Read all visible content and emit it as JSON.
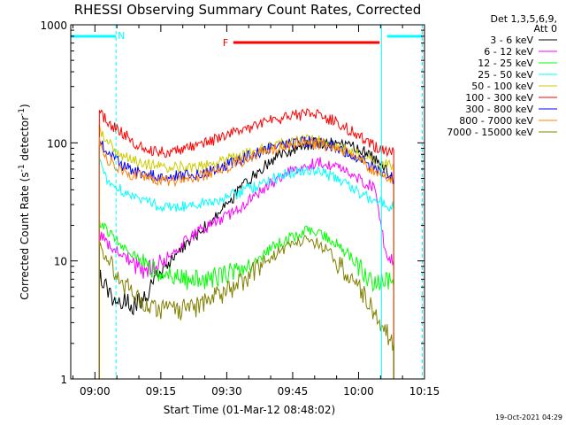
{
  "chart_data": {
    "type": "line",
    "title": "RHESSI Observing Summary Count Rates, Corrected",
    "xlabel": "Start Time (01-Mar-12 08:48:02)",
    "ylabel": "Corrected Count Rate (s-1 detector-1)",
    "ylabel_parts": {
      "a": "Corrected Count Rate (s",
      "sup1": "-1",
      "b": " detector",
      "sup2": "-1",
      "c": ")"
    },
    "xlim_minutes": [
      -5.5,
      75
    ],
    "ylim": [
      1,
      1000
    ],
    "y_scale": "log",
    "x_ticks": [
      {
        "m": 0,
        "label": "09:00"
      },
      {
        "m": 15,
        "label": "09:15"
      },
      {
        "m": 30,
        "label": "09:30"
      },
      {
        "m": 45,
        "label": "09:45"
      },
      {
        "m": 60,
        "label": "10:00"
      },
      {
        "m": 75,
        "label": "10:15"
      }
    ],
    "y_ticks": [
      {
        "v": 1,
        "label": "1"
      },
      {
        "v": 10,
        "label": "10"
      },
      {
        "v": 100,
        "label": "100"
      },
      {
        "v": 1000,
        "label": "1000"
      }
    ],
    "legend": {
      "header1": "Det 1,3,5,6,9,",
      "header2": "Att 0"
    },
    "annotations": {
      "night_label": "N",
      "flare_label": "F",
      "night_segments": [
        [
          -5.5,
          4.8
        ],
        [
          66.5,
          74.5
        ]
      ],
      "night_markers": [
        4.8,
        65.2,
        74.5
      ],
      "flare_segment": [
        31.5,
        64.8
      ]
    },
    "series": [
      {
        "name": "3 - 6 keV",
        "color": "#000000",
        "values": [
          [
            1,
            7.5
          ],
          [
            3,
            5.5
          ],
          [
            6,
            4.5
          ],
          [
            9,
            4.2
          ],
          [
            12,
            5.5
          ],
          [
            15,
            8
          ],
          [
            18,
            11
          ],
          [
            21,
            14
          ],
          [
            24,
            18
          ],
          [
            27,
            23
          ],
          [
            30,
            30
          ],
          [
            33,
            40
          ],
          [
            36,
            52
          ],
          [
            39,
            65
          ],
          [
            42,
            78
          ],
          [
            45,
            88
          ],
          [
            48,
            95
          ],
          [
            51,
            100
          ],
          [
            54,
            99
          ],
          [
            57,
            95
          ],
          [
            60,
            90
          ],
          [
            62,
            82
          ],
          [
            64,
            70
          ],
          [
            66,
            60
          ],
          [
            68,
            45
          ]
        ]
      },
      {
        "name": "6 - 12 keV",
        "color": "#ff00ff",
        "values": [
          [
            1,
            17
          ],
          [
            3,
            14
          ],
          [
            6,
            11
          ],
          [
            9,
            9
          ],
          [
            12,
            8.5
          ],
          [
            15,
            9.5
          ],
          [
            18,
            12
          ],
          [
            21,
            15
          ],
          [
            24,
            18
          ],
          [
            27,
            21
          ],
          [
            30,
            24
          ],
          [
            33,
            28
          ],
          [
            36,
            35
          ],
          [
            39,
            42
          ],
          [
            42,
            50
          ],
          [
            45,
            58
          ],
          [
            48,
            65
          ],
          [
            51,
            68
          ],
          [
            54,
            65
          ],
          [
            57,
            58
          ],
          [
            60,
            50
          ],
          [
            62,
            45
          ],
          [
            64,
            40
          ],
          [
            66,
            12
          ],
          [
            68,
            10
          ]
        ]
      },
      {
        "name": "12 - 25 keV",
        "color": "#00ff00",
        "values": [
          [
            1,
            22
          ],
          [
            3,
            18
          ],
          [
            6,
            14
          ],
          [
            9,
            11
          ],
          [
            12,
            9
          ],
          [
            15,
            8
          ],
          [
            18,
            7
          ],
          [
            21,
            6.8
          ],
          [
            24,
            6.8
          ],
          [
            27,
            7.2
          ],
          [
            30,
            7.8
          ],
          [
            33,
            8.5
          ],
          [
            36,
            10
          ],
          [
            39,
            12
          ],
          [
            42,
            14
          ],
          [
            45,
            16
          ],
          [
            48,
            18
          ],
          [
            51,
            17
          ],
          [
            54,
            15
          ],
          [
            57,
            12
          ],
          [
            60,
            9
          ],
          [
            62,
            7
          ],
          [
            64,
            6.5
          ],
          [
            66,
            6.5
          ],
          [
            68,
            6.5
          ]
        ]
      },
      {
        "name": "25 - 50 keV",
        "color": "#00ffff",
        "values": [
          [
            1,
            70
          ],
          [
            3,
            48
          ],
          [
            6,
            40
          ],
          [
            9,
            35
          ],
          [
            12,
            31
          ],
          [
            15,
            29
          ],
          [
            18,
            29
          ],
          [
            21,
            29
          ],
          [
            24,
            30
          ],
          [
            27,
            32
          ],
          [
            30,
            35
          ],
          [
            33,
            38
          ],
          [
            36,
            42
          ],
          [
            39,
            47
          ],
          [
            42,
            52
          ],
          [
            45,
            56
          ],
          [
            48,
            58
          ],
          [
            51,
            57
          ],
          [
            54,
            52
          ],
          [
            57,
            45
          ],
          [
            60,
            38
          ],
          [
            62,
            35
          ],
          [
            64,
            32
          ],
          [
            66,
            30
          ],
          [
            68,
            29
          ]
        ]
      },
      {
        "name": "50 - 100 keV",
        "color": "#cccc00",
        "values": [
          [
            1,
            135
          ],
          [
            3,
            100
          ],
          [
            6,
            80
          ],
          [
            9,
            70
          ],
          [
            12,
            66
          ],
          [
            15,
            63
          ],
          [
            18,
            62
          ],
          [
            21,
            62
          ],
          [
            24,
            64
          ],
          [
            27,
            67
          ],
          [
            30,
            72
          ],
          [
            33,
            78
          ],
          [
            36,
            85
          ],
          [
            39,
            92
          ],
          [
            42,
            98
          ],
          [
            45,
            103
          ],
          [
            48,
            105
          ],
          [
            51,
            103
          ],
          [
            54,
            97
          ],
          [
            57,
            88
          ],
          [
            60,
            78
          ],
          [
            62,
            72
          ],
          [
            64,
            68
          ],
          [
            66,
            65
          ],
          [
            68,
            63
          ]
        ]
      },
      {
        "name": "100 - 300 keV",
        "color": "#ff0000",
        "values": [
          [
            1,
            185
          ],
          [
            3,
            150
          ],
          [
            6,
            125
          ],
          [
            9,
            100
          ],
          [
            12,
            88
          ],
          [
            15,
            84
          ],
          [
            18,
            85
          ],
          [
            21,
            90
          ],
          [
            24,
            97
          ],
          [
            27,
            105
          ],
          [
            30,
            115
          ],
          [
            33,
            127
          ],
          [
            36,
            138
          ],
          [
            39,
            150
          ],
          [
            42,
            160
          ],
          [
            45,
            170
          ],
          [
            48,
            175
          ],
          [
            51,
            170
          ],
          [
            54,
            155
          ],
          [
            57,
            135
          ],
          [
            60,
            115
          ],
          [
            62,
            100
          ],
          [
            64,
            92
          ],
          [
            66,
            85
          ],
          [
            68,
            82
          ]
        ]
      },
      {
        "name": "300 - 800 keV",
        "color": "#0000ff",
        "values": [
          [
            1,
            105
          ],
          [
            3,
            80
          ],
          [
            6,
            65
          ],
          [
            9,
            57
          ],
          [
            12,
            54
          ],
          [
            15,
            52
          ],
          [
            18,
            52
          ],
          [
            21,
            53
          ],
          [
            24,
            55
          ],
          [
            27,
            59
          ],
          [
            30,
            65
          ],
          [
            33,
            72
          ],
          [
            36,
            80
          ],
          [
            39,
            88
          ],
          [
            42,
            95
          ],
          [
            45,
            100
          ],
          [
            48,
            102
          ],
          [
            51,
            100
          ],
          [
            54,
            94
          ],
          [
            57,
            85
          ],
          [
            60,
            75
          ],
          [
            62,
            65
          ],
          [
            64,
            58
          ],
          [
            66,
            55
          ],
          [
            68,
            50
          ]
        ]
      },
      {
        "name": "800 - 7000 keV",
        "color": "#ff8000",
        "values": [
          [
            1,
            100
          ],
          [
            3,
            72
          ],
          [
            6,
            60
          ],
          [
            9,
            53
          ],
          [
            12,
            50
          ],
          [
            15,
            48
          ],
          [
            18,
            48
          ],
          [
            21,
            49
          ],
          [
            24,
            52
          ],
          [
            27,
            56
          ],
          [
            30,
            62
          ],
          [
            33,
            69
          ],
          [
            36,
            77
          ],
          [
            39,
            85
          ],
          [
            42,
            92
          ],
          [
            45,
            98
          ],
          [
            48,
            100
          ],
          [
            51,
            98
          ],
          [
            54,
            92
          ],
          [
            57,
            83
          ],
          [
            60,
            73
          ],
          [
            62,
            64
          ],
          [
            64,
            56
          ],
          [
            66,
            52
          ],
          [
            68,
            48
          ]
        ]
      },
      {
        "name": "7000 - 15000 keV",
        "color": "#808000",
        "values": [
          [
            1,
            13
          ],
          [
            3,
            10
          ],
          [
            6,
            7
          ],
          [
            9,
            5
          ],
          [
            12,
            4
          ],
          [
            15,
            3.8
          ],
          [
            18,
            3.8
          ],
          [
            21,
            3.9
          ],
          [
            24,
            4.2
          ],
          [
            27,
            4.8
          ],
          [
            30,
            5.5
          ],
          [
            33,
            6.5
          ],
          [
            36,
            8
          ],
          [
            39,
            10
          ],
          [
            42,
            12
          ],
          [
            45,
            14
          ],
          [
            48,
            15
          ],
          [
            51,
            14
          ],
          [
            54,
            11
          ],
          [
            57,
            8
          ],
          [
            60,
            6
          ],
          [
            62,
            4.5
          ],
          [
            64,
            3.5
          ],
          [
            66,
            2.5
          ],
          [
            68,
            2
          ]
        ]
      }
    ]
  },
  "footer": {
    "timestamp": "19-Oct-2021 04:29"
  }
}
